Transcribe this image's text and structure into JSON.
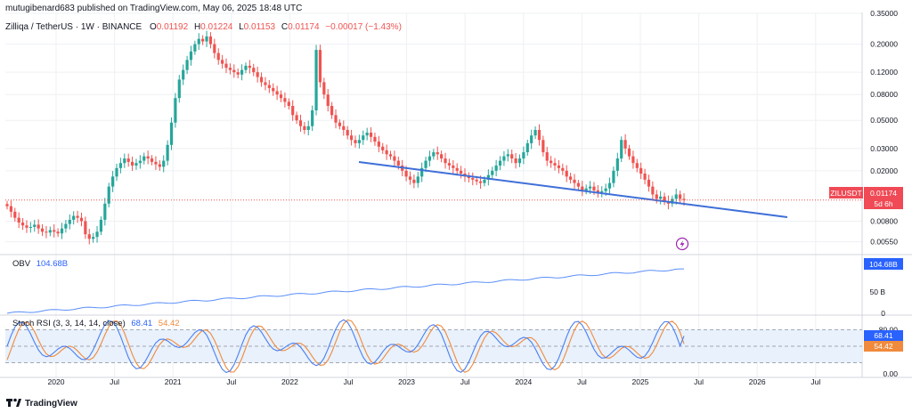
{
  "header": {
    "publisher": "mutugibenard683 published on TradingView.com, May 06, 2025 18:48 UTC"
  },
  "legend": {
    "symbol": "Zilliqa / TetherUS · 1W · BINANCE",
    "o_label": "O",
    "o": "0.01192",
    "h_label": "H",
    "h": "0.01224",
    "l_label": "L",
    "l": "0.01153",
    "c_label": "C",
    "c": "0.01174",
    "change": "−0.00017 (−1.43%)"
  },
  "price_tag": {
    "ticker": "ZILUSDT",
    "price": "0.01174",
    "countdown": "5d 6h"
  },
  "obv": {
    "label": "OBV",
    "value": "104.68B",
    "tag": "104.68B"
  },
  "stoch": {
    "label": "Stoch RSI (3, 3, 14, 14, close)",
    "k": "68.41",
    "d": "54.42"
  },
  "footer": {
    "brand": "TradingView"
  },
  "colors": {
    "up": "#26a69a",
    "down": "#ef5350",
    "trendline": "#3f6fd8",
    "obv": "#5b8ff9",
    "stoch_k": "#4a7ef0",
    "stoch_d": "#f08a3c",
    "tag_red": "#ef4a55",
    "tag_blue": "#2962ff",
    "band": "#e8f1fc"
  },
  "chart_data": [
    {
      "type": "candlestick",
      "title": "Zilliqa / TetherUS · 1W · BINANCE",
      "scale": "log",
      "ylim": [
        0.0045,
        0.35
      ],
      "y_ticks": [
        "0.35000",
        "0.20000",
        "0.12000",
        "0.08000",
        "0.05000",
        "0.03000",
        "0.02000",
        "0.00800",
        "0.00550"
      ],
      "x_ticks": [
        "2020",
        "Jul",
        "2021",
        "Jul",
        "2022",
        "Jul",
        "2023",
        "Jul",
        "2024",
        "Jul",
        "2025",
        "Jul",
        "2026",
        "Jul"
      ],
      "last_price": 0.01174,
      "closes": [
        0.0105,
        0.0095,
        0.0085,
        0.0078,
        0.0074,
        0.0071,
        0.0072,
        0.0075,
        0.007,
        0.0066,
        0.0065,
        0.0068,
        0.0066,
        0.0064,
        0.007,
        0.0076,
        0.0082,
        0.0088,
        0.0085,
        0.008,
        0.0063,
        0.0058,
        0.006,
        0.0066,
        0.0082,
        0.011,
        0.015,
        0.018,
        0.021,
        0.023,
        0.025,
        0.0235,
        0.022,
        0.023,
        0.024,
        0.026,
        0.025,
        0.0235,
        0.0225,
        0.0215,
        0.024,
        0.032,
        0.048,
        0.075,
        0.105,
        0.125,
        0.15,
        0.175,
        0.2,
        0.22,
        0.21,
        0.23,
        0.2,
        0.17,
        0.15,
        0.14,
        0.13,
        0.125,
        0.12,
        0.115,
        0.125,
        0.135,
        0.13,
        0.12,
        0.11,
        0.1,
        0.095,
        0.09,
        0.085,
        0.08,
        0.075,
        0.07,
        0.065,
        0.055,
        0.05,
        0.045,
        0.042,
        0.045,
        0.06,
        0.18,
        0.1,
        0.08,
        0.065,
        0.055,
        0.048,
        0.045,
        0.042,
        0.038,
        0.035,
        0.033,
        0.035,
        0.038,
        0.04,
        0.037,
        0.034,
        0.031,
        0.029,
        0.027,
        0.026,
        0.024,
        0.022,
        0.02,
        0.018,
        0.017,
        0.016,
        0.018,
        0.021,
        0.024,
        0.026,
        0.028,
        0.027,
        0.025,
        0.023,
        0.022,
        0.021,
        0.02,
        0.019,
        0.018,
        0.0175,
        0.017,
        0.0165,
        0.016,
        0.017,
        0.0185,
        0.02,
        0.022,
        0.024,
        0.026,
        0.027,
        0.025,
        0.023,
        0.025,
        0.028,
        0.033,
        0.038,
        0.042,
        0.035,
        0.028,
        0.024,
        0.023,
        0.022,
        0.021,
        0.02,
        0.018,
        0.017,
        0.016,
        0.015,
        0.014,
        0.0145,
        0.015,
        0.014,
        0.0135,
        0.0138,
        0.0145,
        0.016,
        0.02,
        0.025,
        0.035,
        0.03,
        0.026,
        0.023,
        0.021,
        0.019,
        0.017,
        0.015,
        0.013,
        0.012,
        0.0125,
        0.0115,
        0.011,
        0.012,
        0.013,
        0.012,
        0.01174
      ]
    },
    {
      "type": "line",
      "title": "OBV",
      "y_ticks": [
        "50 B",
        "0"
      ],
      "last_value": "104.68B"
    },
    {
      "type": "line",
      "title": "Stoch RSI (3, 3, 14, 14, close)",
      "ylim": [
        0,
        100
      ],
      "y_ticks": [
        "80.00",
        "0.00"
      ],
      "bands": [
        80,
        20
      ],
      "series": [
        {
          "name": "K",
          "last": 68.41
        },
        {
          "name": "D",
          "last": 54.42
        }
      ]
    }
  ]
}
